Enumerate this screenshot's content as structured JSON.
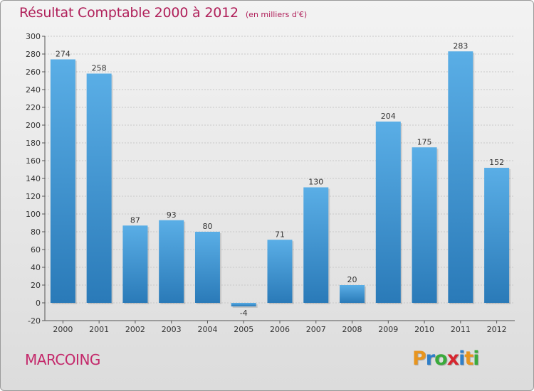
{
  "title": "Résultat Comptable 2000 à 2012",
  "subtitle": "(en milliers d'€)",
  "commune": "MARCOING",
  "logo": {
    "letters": [
      "P",
      "r",
      "o",
      "x",
      "i",
      "t",
      "i"
    ],
    "colors": [
      "#e8951e",
      "#2f7fc8",
      "#3aaa3c",
      "#d6262f",
      "#2f7fc8",
      "#e8951e",
      "#3aaa3c"
    ]
  },
  "colors": {
    "bar_top": "#5aaee6",
    "bar_bottom": "#2a7ab8",
    "title": "#b0205a",
    "axis": "#555555",
    "grid": "#c8c8c8"
  },
  "chart_data": {
    "type": "bar",
    "categories": [
      "2000",
      "2001",
      "2002",
      "2003",
      "2004",
      "2005",
      "2006",
      "2007",
      "2008",
      "2009",
      "2010",
      "2011",
      "2012"
    ],
    "values": [
      274,
      258,
      87,
      93,
      80,
      -4,
      71,
      130,
      20,
      204,
      175,
      283,
      152
    ],
    "data_labels": [
      "274",
      "258",
      "87",
      "93",
      "80",
      "-4",
      "71",
      "130",
      "20",
      "204",
      "175",
      "283",
      "152"
    ],
    "yticks": [
      -20,
      0,
      20,
      40,
      60,
      80,
      100,
      120,
      140,
      160,
      180,
      200,
      220,
      240,
      260,
      280,
      300
    ],
    "ylim": [
      -20,
      300
    ],
    "grid": true
  }
}
